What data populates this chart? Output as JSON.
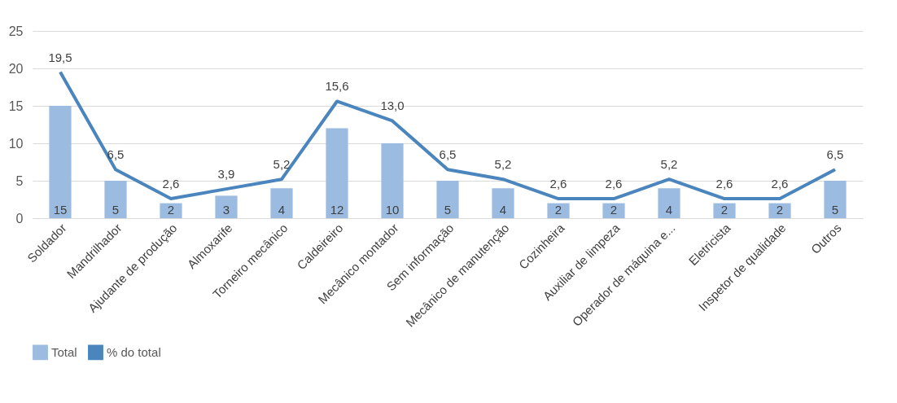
{
  "chart_data": {
    "type": "bar",
    "categories": [
      "Soldador",
      "Mandrilhador",
      "Ajudante de produção",
      "Almoxarife",
      "Torneiro mecânico",
      "Caldeireiro",
      "Mecânico montador",
      "Sem informação",
      "Mecânico de manutenção",
      "Cozinheira",
      "Auxiliar de limpeza",
      "Operador de máquina e...",
      "Eletricista",
      "Inspetor de qualidade",
      "Outros"
    ],
    "series": [
      {
        "name": "Total",
        "color": "#9bbbe0",
        "values": [
          15,
          5,
          2,
          3,
          4,
          12,
          10,
          5,
          4,
          2,
          2,
          4,
          2,
          2,
          5
        ],
        "value_labels": [
          "15",
          "5",
          "2",
          "3",
          "4",
          "12",
          "10",
          "5",
          "4",
          "2",
          "2",
          "4",
          "2",
          "2",
          "5"
        ]
      },
      {
        "name": "% do total",
        "type": "line",
        "color": "#4a85bd",
        "values": [
          19.5,
          6.5,
          2.6,
          3.9,
          5.2,
          15.6,
          13.0,
          6.5,
          5.2,
          2.6,
          2.6,
          5.2,
          2.6,
          2.6,
          6.5
        ],
        "value_labels": [
          "19,5",
          "6,5",
          "2,6",
          "3,9",
          "5,2",
          "15,6",
          "13,0",
          "6,5",
          "5,2",
          "2,6",
          "2,6",
          "5,2",
          "2,6",
          "2,6",
          "6,5"
        ]
      }
    ],
    "ylim": [
      0,
      25
    ],
    "yticks": [
      0,
      5,
      10,
      15,
      20,
      25
    ],
    "grid": "y",
    "legend": "bottom",
    "line_style": "solid",
    "marker": "none"
  }
}
